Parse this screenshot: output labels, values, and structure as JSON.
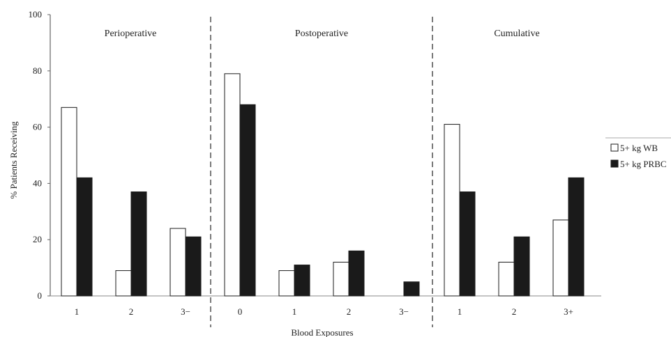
{
  "chart_data": {
    "type": "bar",
    "xlabel": "Blood Exposures",
    "ylabel": "% Patients Receiving",
    "ylim": [
      0,
      100
    ],
    "yticks": [
      "0",
      "20",
      "40",
      "60",
      "80",
      "100"
    ],
    "grid": false,
    "legend_position": "right",
    "series": [
      {
        "name": "5+ kg WB",
        "color": "#ffffff"
      },
      {
        "name": "5+ kg PRBC",
        "color": "#1a1a1a"
      }
    ],
    "panels": [
      {
        "title": "Perioperative",
        "categories": [
          "1",
          "2",
          "3−"
        ],
        "values": [
          [
            67,
            42
          ],
          [
            9,
            37
          ],
          [
            24,
            21
          ]
        ]
      },
      {
        "title": "Postoperative",
        "categories": [
          "0",
          "1",
          "2",
          "3−"
        ],
        "values": [
          [
            79,
            68
          ],
          [
            9,
            11
          ],
          [
            12,
            16
          ],
          [
            0,
            5
          ]
        ]
      },
      {
        "title": "Cumulative",
        "categories": [
          "1",
          "2",
          "3+"
        ],
        "values": [
          [
            61,
            37
          ],
          [
            12,
            21
          ],
          [
            27,
            42
          ]
        ]
      }
    ]
  }
}
